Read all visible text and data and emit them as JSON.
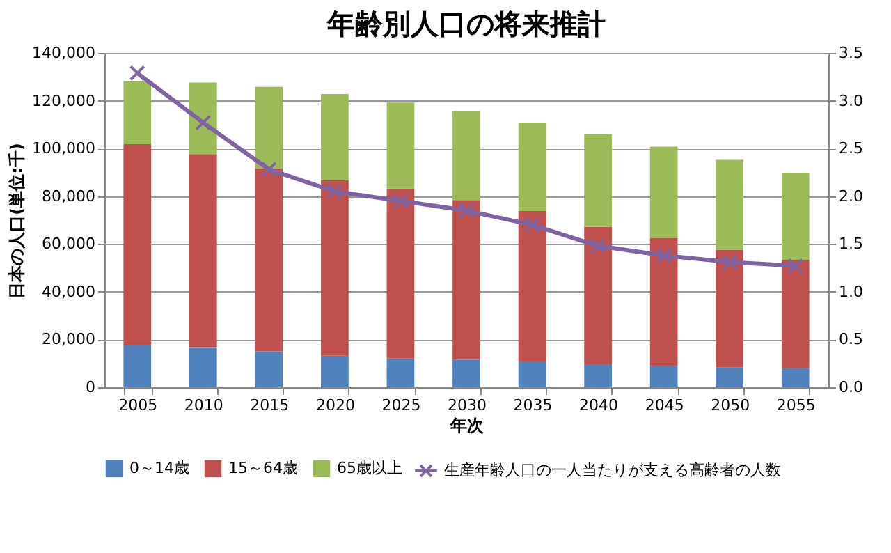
{
  "chart_data": {
    "type": "bar",
    "title": "年齢別人口の将来推計",
    "xlabel": "年次",
    "ylabel": "日本の人口(単位:千)",
    "categories": [
      "2005",
      "2010",
      "2015",
      "2020",
      "2025",
      "2030",
      "2035",
      "2040",
      "2045",
      "2050",
      "2055"
    ],
    "stacked": true,
    "series": [
      {
        "name": "0～14歳",
        "color": "#4f81bd",
        "values": [
          17600,
          16800,
          15000,
          13200,
          12000,
          11600,
          10800,
          9600,
          9000,
          8400,
          8000
        ]
      },
      {
        "name": "15～64歳",
        "color": "#c0504d",
        "values": [
          84200,
          80800,
          76600,
          73600,
          71200,
          66800,
          63000,
          57600,
          53400,
          49200,
          45400
        ]
      },
      {
        "name": "65歳以上",
        "color": "#9bbb59",
        "values": [
          26400,
          30000,
          34200,
          36000,
          36000,
          37200,
          37000,
          38800,
          38400,
          37600,
          36400
        ]
      },
      {
        "name": "生産年齢人口の一人当たりが支える高齢者の人数",
        "color": "#8064a2",
        "type": "line",
        "axis": "y2",
        "marker": "cross",
        "values": [
          3.29,
          2.77,
          2.28,
          2.05,
          1.95,
          1.85,
          1.7,
          1.48,
          1.38,
          1.31,
          1.27
        ]
      }
    ],
    "ylim": [
      0,
      140000
    ],
    "yticks": [
      {
        "value": 0,
        "label": "0"
      },
      {
        "value": 20000,
        "label": "20,000"
      },
      {
        "value": 40000,
        "label": "40,000"
      },
      {
        "value": 60000,
        "label": "60,000"
      },
      {
        "value": 80000,
        "label": "80,000"
      },
      {
        "value": 100000,
        "label": "100,000"
      },
      {
        "value": 120000,
        "label": "120,000"
      },
      {
        "value": 140000,
        "label": "140,000"
      }
    ],
    "y2lim": [
      0,
      3.5
    ],
    "y2ticks": [
      {
        "value": 0,
        "label": "0.0"
      },
      {
        "value": 0.5,
        "label": "0.5"
      },
      {
        "value": 1,
        "label": "1.0"
      },
      {
        "value": 1.5,
        "label": "1.5"
      },
      {
        "value": 2,
        "label": "2.0"
      },
      {
        "value": 2.5,
        "label": "2.5"
      },
      {
        "value": 3,
        "label": "3.0"
      },
      {
        "value": 3.5,
        "label": "3.5"
      }
    ],
    "grid": "y",
    "legend": "bottom"
  }
}
